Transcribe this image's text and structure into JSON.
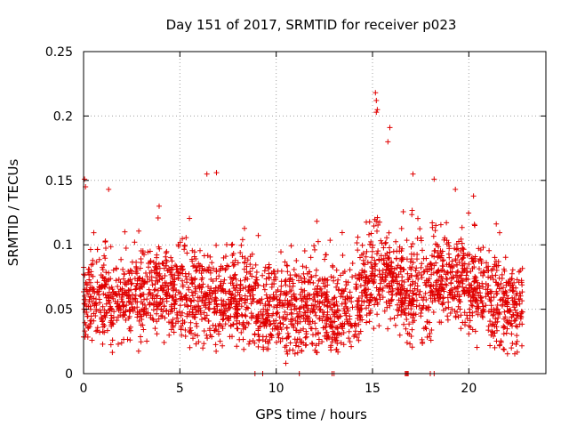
{
  "chart_data": {
    "type": "scatter",
    "title": "Day 151 of 2017, SRMTID for receiver p023",
    "xlabel": "GPS time / hours",
    "ylabel": "SRMTID / TECUs",
    "xlim": [
      0,
      24
    ],
    "ylim": [
      0,
      0.25
    ],
    "xticks": [
      0,
      5,
      10,
      15,
      20
    ],
    "yticks": [
      0,
      0.05,
      0.1,
      0.15,
      0.2,
      0.25
    ],
    "xtick_labels": [
      "0",
      "5",
      "10",
      "15",
      "20"
    ],
    "ytick_labels": [
      "0",
      "0.05",
      "0.1",
      "0.15",
      "0.2",
      "0.25"
    ],
    "grid": true,
    "marker": "+",
    "color": "#e00000",
    "approximate_point_count": 2700,
    "baseline_level_approx": [
      [
        0,
        0.06
      ],
      [
        1,
        0.058
      ],
      [
        2,
        0.058
      ],
      [
        3,
        0.065
      ],
      [
        4,
        0.066
      ],
      [
        5,
        0.062
      ],
      [
        6,
        0.06
      ],
      [
        7,
        0.058
      ],
      [
        8,
        0.055
      ],
      [
        9,
        0.052
      ],
      [
        10,
        0.048
      ],
      [
        11,
        0.05
      ],
      [
        12,
        0.05
      ],
      [
        13,
        0.048
      ],
      [
        14,
        0.05
      ],
      [
        15,
        0.08
      ],
      [
        16,
        0.07
      ],
      [
        17,
        0.063
      ],
      [
        18,
        0.068
      ],
      [
        19,
        0.075
      ],
      [
        20,
        0.068
      ],
      [
        21,
        0.058
      ],
      [
        22,
        0.052
      ],
      [
        22.8,
        0.055
      ]
    ],
    "notable_points": [
      {
        "x": 0.05,
        "y": 0.151
      },
      {
        "x": 0.1,
        "y": 0.145
      },
      {
        "x": 1.3,
        "y": 0.143
      },
      {
        "x": 6.4,
        "y": 0.155
      },
      {
        "x": 6.9,
        "y": 0.156
      },
      {
        "x": 15.15,
        "y": 0.218
      },
      {
        "x": 15.2,
        "y": 0.212
      },
      {
        "x": 15.25,
        "y": 0.205
      },
      {
        "x": 15.2,
        "y": 0.203
      },
      {
        "x": 15.9,
        "y": 0.191
      },
      {
        "x": 15.8,
        "y": 0.18
      },
      {
        "x": 17.1,
        "y": 0.155
      },
      {
        "x": 18.2,
        "y": 0.151
      },
      {
        "x": 19.3,
        "y": 0.143
      },
      {
        "x": 10.5,
        "y": 0.008
      }
    ],
    "zero_points_x": [
      8.9,
      9.3,
      11.2,
      12.9,
      13.0,
      16.7,
      16.75,
      16.8,
      16.85,
      18.0,
      18.2
    ]
  }
}
